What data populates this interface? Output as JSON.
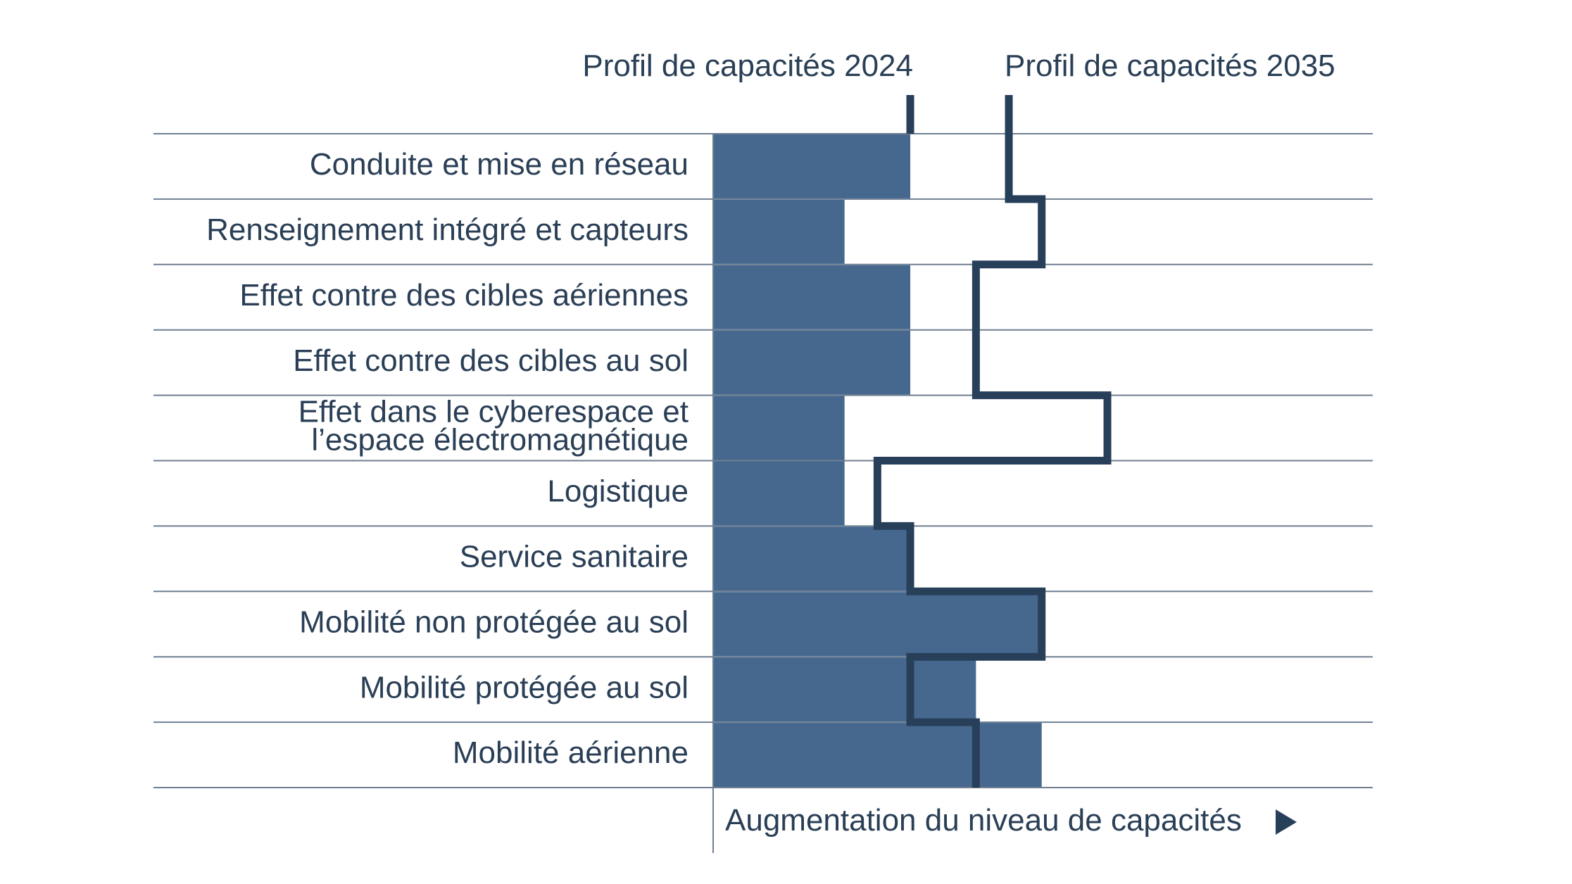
{
  "chart_data": {
    "type": "bar",
    "orientation": "horizontal",
    "categories": [
      [
        "Conduite et mise en réseau"
      ],
      [
        "Renseignement intégré et capteurs"
      ],
      [
        "Effet contre des cibles aériennes"
      ],
      [
        "Effet contre des cibles au sol"
      ],
      [
        "Effet dans le cyberespace et",
        "l’espace électromagnétique"
      ],
      [
        "Logistique"
      ],
      [
        "Service sanitaire"
      ],
      [
        "Mobilité non protégée au sol"
      ],
      [
        "Mobilité protégée au sol"
      ],
      [
        "Mobilité aérienne"
      ]
    ],
    "series": [
      {
        "name": "Profil de capacités 2024",
        "style": "bar",
        "values": [
          6,
          4,
          6,
          6,
          4,
          4,
          6,
          10,
          8,
          10
        ]
      },
      {
        "name": "Profil de capacités 2035",
        "style": "step-line",
        "values": [
          9,
          10,
          8,
          8,
          12,
          5,
          6,
          10,
          6,
          8
        ]
      }
    ],
    "xlabel": "Augmentation du niveau de capacités",
    "xlim": [
      0,
      20
    ],
    "grid": "horizontal-row-separators",
    "colors": {
      "bar": "#46688f",
      "line": "#283f5a",
      "grid": "#6f7f92",
      "text": "#2a3f56"
    }
  }
}
